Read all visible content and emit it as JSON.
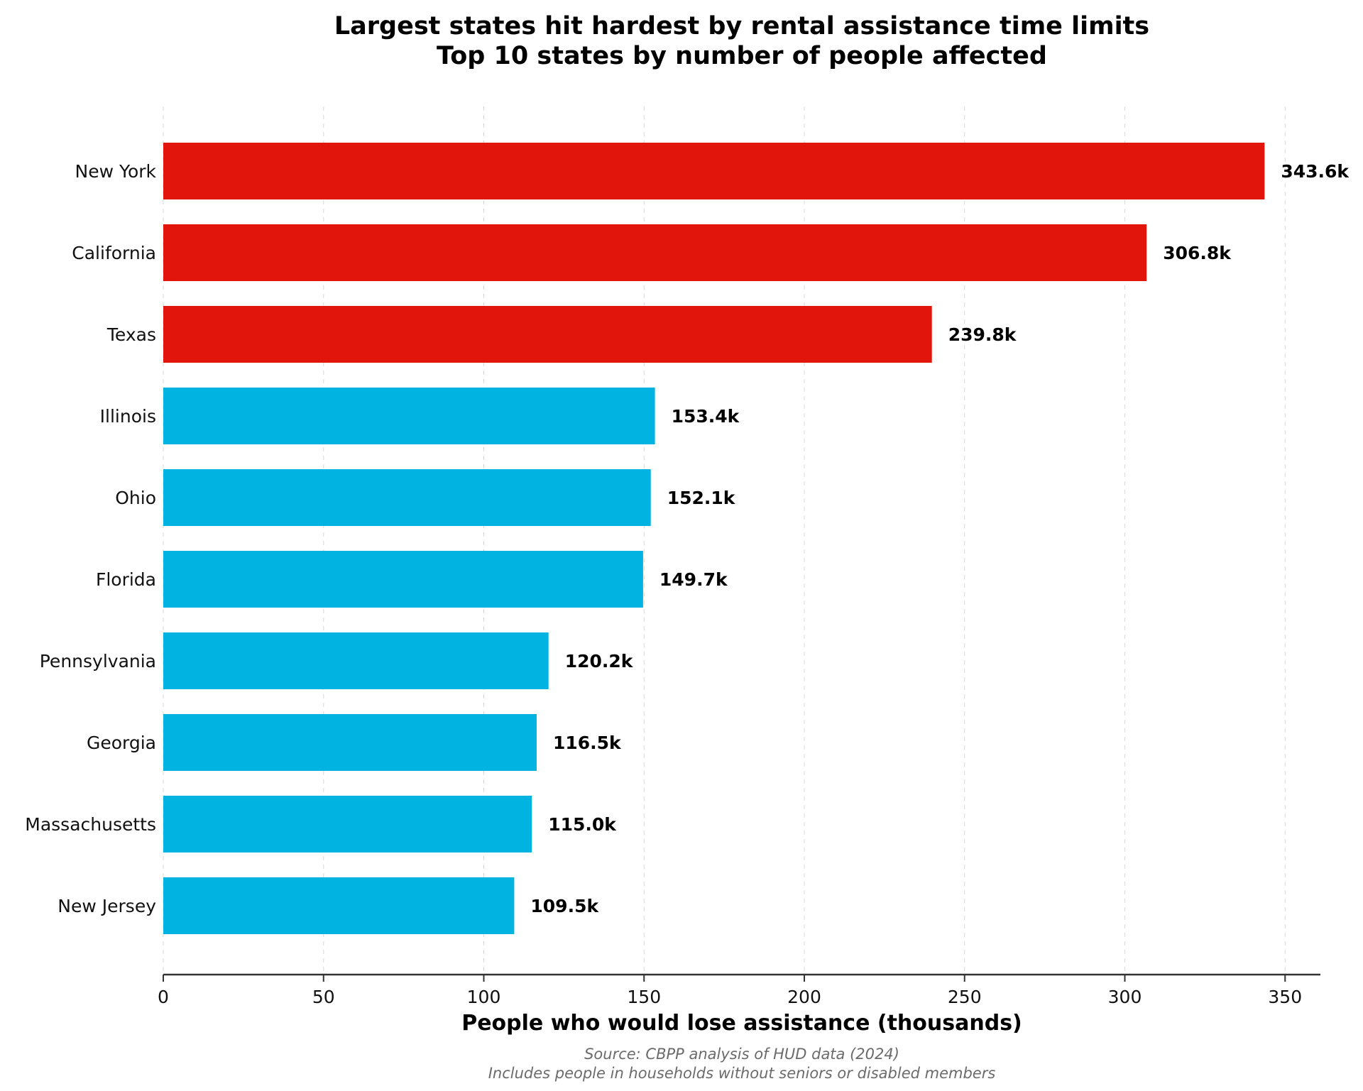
{
  "chart_data": {
    "type": "bar",
    "orientation": "horizontal",
    "title": "Largest states hit hardest by rental assistance time limits",
    "subtitle": "Top 10 states by number of people affected",
    "xlabel": "People who would lose assistance (thousands)",
    "ylabel": "",
    "categories": [
      "New York",
      "California",
      "Texas",
      "Illinois",
      "Ohio",
      "Florida",
      "Pennsylvania",
      "Georgia",
      "Massachusetts",
      "New Jersey"
    ],
    "values": [
      343.6,
      306.8,
      239.8,
      153.4,
      152.1,
      149.7,
      120.2,
      116.5,
      115.0,
      109.5
    ],
    "value_labels": [
      "343.6k",
      "306.8k",
      "239.8k",
      "153.4k",
      "152.1k",
      "149.7k",
      "120.2k",
      "116.5k",
      "115.0k",
      "109.5k"
    ],
    "highlight_top_n": 3,
    "colors": {
      "highlight": "#e2150d",
      "default": "#00b3e0",
      "grid": "#d9d9d9",
      "axis": "#333333"
    },
    "xlim": [
      0,
      360
    ],
    "xticks": [
      0,
      50,
      100,
      150,
      200,
      250,
      300,
      350
    ],
    "grid": "vertical dashed",
    "legend": "none",
    "source_line1": "Source: CBPP analysis of HUD data (2024)",
    "source_line2": "Includes people in households without seniors or disabled members"
  }
}
